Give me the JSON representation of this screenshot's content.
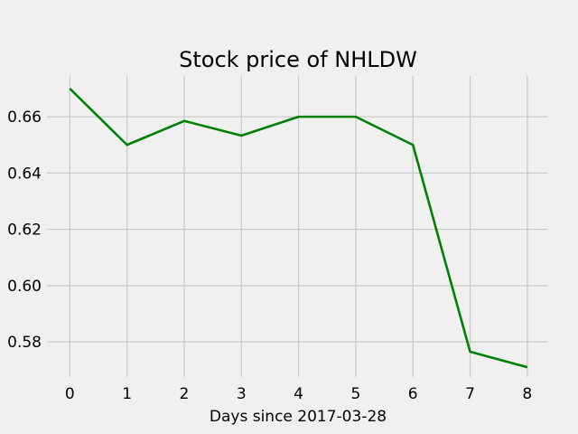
{
  "chart_data": {
    "type": "line",
    "title": "Stock price of NHLDW",
    "xlabel": "Days since 2017-03-28",
    "ylabel": "",
    "x": [
      0,
      1,
      2,
      3,
      4,
      5,
      6,
      7,
      8
    ],
    "series": [
      {
        "values": [
          0.67,
          0.65,
          0.6585,
          0.6533,
          0.66,
          0.66,
          0.65,
          0.5765,
          0.571
        ],
        "color": "#008000"
      }
    ],
    "xlim": [
      -0.4,
      8.35
    ],
    "ylim": [
      0.5675,
      0.6745
    ],
    "xticks": [
      0,
      1,
      2,
      3,
      4,
      5,
      6,
      7,
      8
    ],
    "xtick_labels": [
      "0",
      "1",
      "2",
      "3",
      "4",
      "5",
      "6",
      "7",
      "8"
    ],
    "yticks": [
      0.58,
      0.6,
      0.62,
      0.64,
      0.66
    ],
    "ytick_labels": [
      "0.58",
      "0.60",
      "0.62",
      "0.64",
      "0.66"
    ],
    "grid": true,
    "background": "#f0f0f0"
  }
}
